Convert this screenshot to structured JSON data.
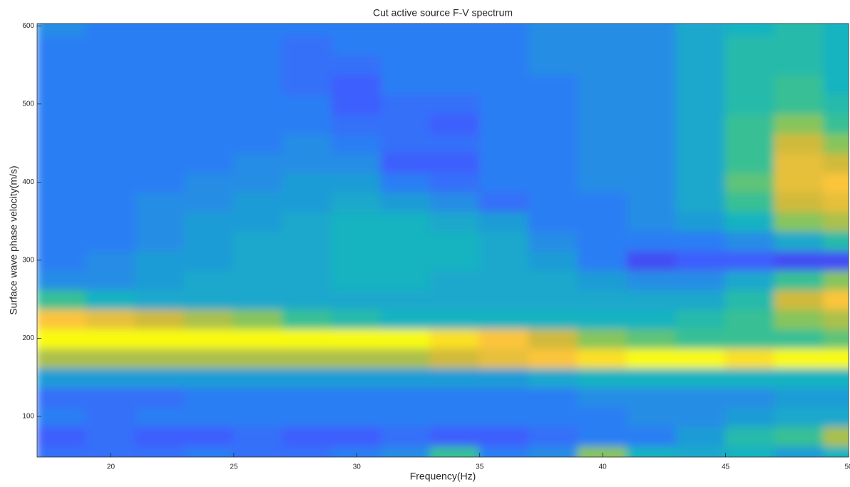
{
  "chart_data": {
    "type": "heatmap",
    "title": "Cut active source F-V spectrum",
    "x_label": "Frequency(Hz)",
    "y_label": "Surface wave phase velocity(m/s)",
    "xlim": [
      17,
      50
    ],
    "ylim": [
      48,
      603
    ],
    "xticks": [
      20,
      25,
      30,
      35,
      40,
      45,
      50
    ],
    "yticks": [
      100,
      200,
      300,
      400,
      500,
      600
    ],
    "clim": [
      0,
      1
    ],
    "colormap": [
      "#3e26a8",
      "#4a3dea",
      "#3c5ffd",
      "#2c7ef4",
      "#1e9cd6",
      "#16b3c1",
      "#37c094",
      "#87c55b",
      "#d0ba3b",
      "#fcc53a",
      "#f9fb0e"
    ],
    "x": [
      18,
      20,
      22,
      24,
      26,
      28,
      30,
      32,
      34,
      36,
      38,
      40,
      42,
      44,
      46,
      48,
      50
    ],
    "y": [
      50,
      75,
      100,
      125,
      150,
      175,
      200,
      225,
      250,
      275,
      300,
      325,
      350,
      375,
      400,
      425,
      450,
      475,
      500,
      525,
      550,
      575,
      600
    ],
    "z": [
      [
        0.25,
        0.25,
        0.25,
        0.3,
        0.25,
        0.25,
        0.3,
        0.35,
        0.6,
        0.3,
        0.35,
        0.7,
        0.5,
        0.45,
        0.5,
        0.4,
        0.5
      ],
      [
        0.2,
        0.25,
        0.2,
        0.2,
        0.25,
        0.2,
        0.2,
        0.25,
        0.2,
        0.2,
        0.25,
        0.3,
        0.3,
        0.4,
        0.55,
        0.6,
        0.75
      ],
      [
        0.3,
        0.25,
        0.3,
        0.3,
        0.3,
        0.3,
        0.3,
        0.3,
        0.3,
        0.3,
        0.3,
        0.3,
        0.35,
        0.35,
        0.4,
        0.45,
        0.45
      ],
      [
        0.25,
        0.25,
        0.25,
        0.3,
        0.3,
        0.3,
        0.3,
        0.3,
        0.3,
        0.3,
        0.3,
        0.35,
        0.35,
        0.35,
        0.35,
        0.4,
        0.4
      ],
      [
        0.4,
        0.4,
        0.4,
        0.4,
        0.4,
        0.4,
        0.4,
        0.4,
        0.4,
        0.4,
        0.45,
        0.5,
        0.5,
        0.5,
        0.5,
        0.5,
        0.5
      ],
      [
        0.75,
        0.75,
        0.75,
        0.75,
        0.75,
        0.75,
        0.75,
        0.75,
        0.8,
        0.85,
        0.9,
        0.95,
        1,
        1,
        0.95,
        1,
        1
      ],
      [
        1,
        1,
        1,
        1,
        1,
        1,
        1,
        1,
        0.95,
        0.9,
        0.8,
        0.7,
        0.65,
        0.6,
        0.6,
        0.6,
        0.65
      ],
      [
        0.9,
        0.85,
        0.8,
        0.75,
        0.7,
        0.6,
        0.55,
        0.5,
        0.5,
        0.5,
        0.5,
        0.5,
        0.5,
        0.55,
        0.6,
        0.7,
        0.75
      ],
      [
        0.6,
        0.5,
        0.45,
        0.45,
        0.45,
        0.45,
        0.45,
        0.45,
        0.45,
        0.45,
        0.45,
        0.45,
        0.45,
        0.45,
        0.55,
        0.8,
        0.9
      ],
      [
        0.35,
        0.35,
        0.4,
        0.45,
        0.45,
        0.45,
        0.5,
        0.5,
        0.45,
        0.45,
        0.45,
        0.4,
        0.35,
        0.35,
        0.45,
        0.6,
        0.7
      ],
      [
        0.3,
        0.35,
        0.4,
        0.4,
        0.45,
        0.45,
        0.5,
        0.5,
        0.5,
        0.45,
        0.4,
        0.3,
        0.15,
        0.2,
        0.2,
        0.15,
        0.15
      ],
      [
        0.3,
        0.3,
        0.35,
        0.4,
        0.45,
        0.45,
        0.5,
        0.5,
        0.5,
        0.45,
        0.35,
        0.3,
        0.3,
        0.3,
        0.35,
        0.45,
        0.55
      ],
      [
        0.3,
        0.3,
        0.35,
        0.4,
        0.4,
        0.45,
        0.5,
        0.5,
        0.45,
        0.4,
        0.3,
        0.3,
        0.35,
        0.4,
        0.5,
        0.7,
        0.75
      ],
      [
        0.3,
        0.3,
        0.35,
        0.35,
        0.4,
        0.4,
        0.45,
        0.4,
        0.35,
        0.25,
        0.3,
        0.3,
        0.35,
        0.45,
        0.6,
        0.8,
        0.85
      ],
      [
        0.3,
        0.3,
        0.3,
        0.35,
        0.35,
        0.4,
        0.4,
        0.3,
        0.25,
        0.3,
        0.3,
        0.35,
        0.35,
        0.45,
        0.65,
        0.85,
        0.9
      ],
      [
        0.3,
        0.3,
        0.3,
        0.3,
        0.35,
        0.35,
        0.35,
        0.2,
        0.2,
        0.3,
        0.3,
        0.35,
        0.35,
        0.45,
        0.6,
        0.85,
        0.8
      ],
      [
        0.3,
        0.3,
        0.3,
        0.3,
        0.3,
        0.35,
        0.3,
        0.25,
        0.25,
        0.3,
        0.3,
        0.35,
        0.35,
        0.45,
        0.6,
        0.8,
        0.7
      ],
      [
        0.3,
        0.3,
        0.3,
        0.3,
        0.3,
        0.3,
        0.25,
        0.25,
        0.2,
        0.3,
        0.3,
        0.35,
        0.35,
        0.45,
        0.6,
        0.7,
        0.6
      ],
      [
        0.3,
        0.3,
        0.3,
        0.3,
        0.3,
        0.3,
        0.2,
        0.25,
        0.25,
        0.3,
        0.3,
        0.35,
        0.35,
        0.45,
        0.55,
        0.6,
        0.55
      ],
      [
        0.3,
        0.3,
        0.3,
        0.3,
        0.3,
        0.25,
        0.2,
        0.3,
        0.3,
        0.3,
        0.3,
        0.35,
        0.35,
        0.45,
        0.55,
        0.6,
        0.5
      ],
      [
        0.3,
        0.3,
        0.3,
        0.3,
        0.3,
        0.25,
        0.25,
        0.3,
        0.3,
        0.3,
        0.35,
        0.35,
        0.35,
        0.45,
        0.55,
        0.55,
        0.5
      ],
      [
        0.3,
        0.3,
        0.3,
        0.3,
        0.3,
        0.25,
        0.3,
        0.3,
        0.3,
        0.3,
        0.35,
        0.35,
        0.35,
        0.45,
        0.55,
        0.55,
        0.5
      ],
      [
        0.35,
        0.3,
        0.3,
        0.3,
        0.3,
        0.3,
        0.3,
        0.3,
        0.3,
        0.3,
        0.35,
        0.35,
        0.35,
        0.45,
        0.5,
        0.55,
        0.5
      ]
    ]
  }
}
